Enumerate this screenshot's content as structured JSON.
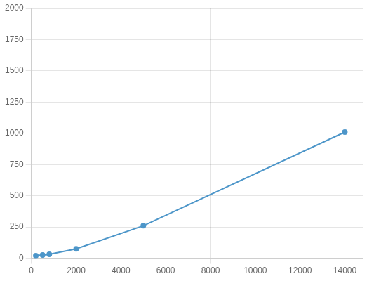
{
  "chart_data": {
    "type": "line",
    "x": [
      200,
      500,
      800,
      2000,
      5000,
      14000
    ],
    "values": [
      20,
      26,
      32,
      75,
      260,
      1010
    ],
    "color": "#4d96c9",
    "marker": "circle",
    "xlim": [
      0,
      14800
    ],
    "ylim": [
      0,
      2000
    ],
    "xticks": [
      0,
      2000,
      4000,
      6000,
      8000,
      10000,
      12000,
      14000
    ],
    "yticks": [
      0,
      250,
      500,
      750,
      1000,
      1250,
      1500,
      1750,
      2000
    ],
    "grid": true
  }
}
